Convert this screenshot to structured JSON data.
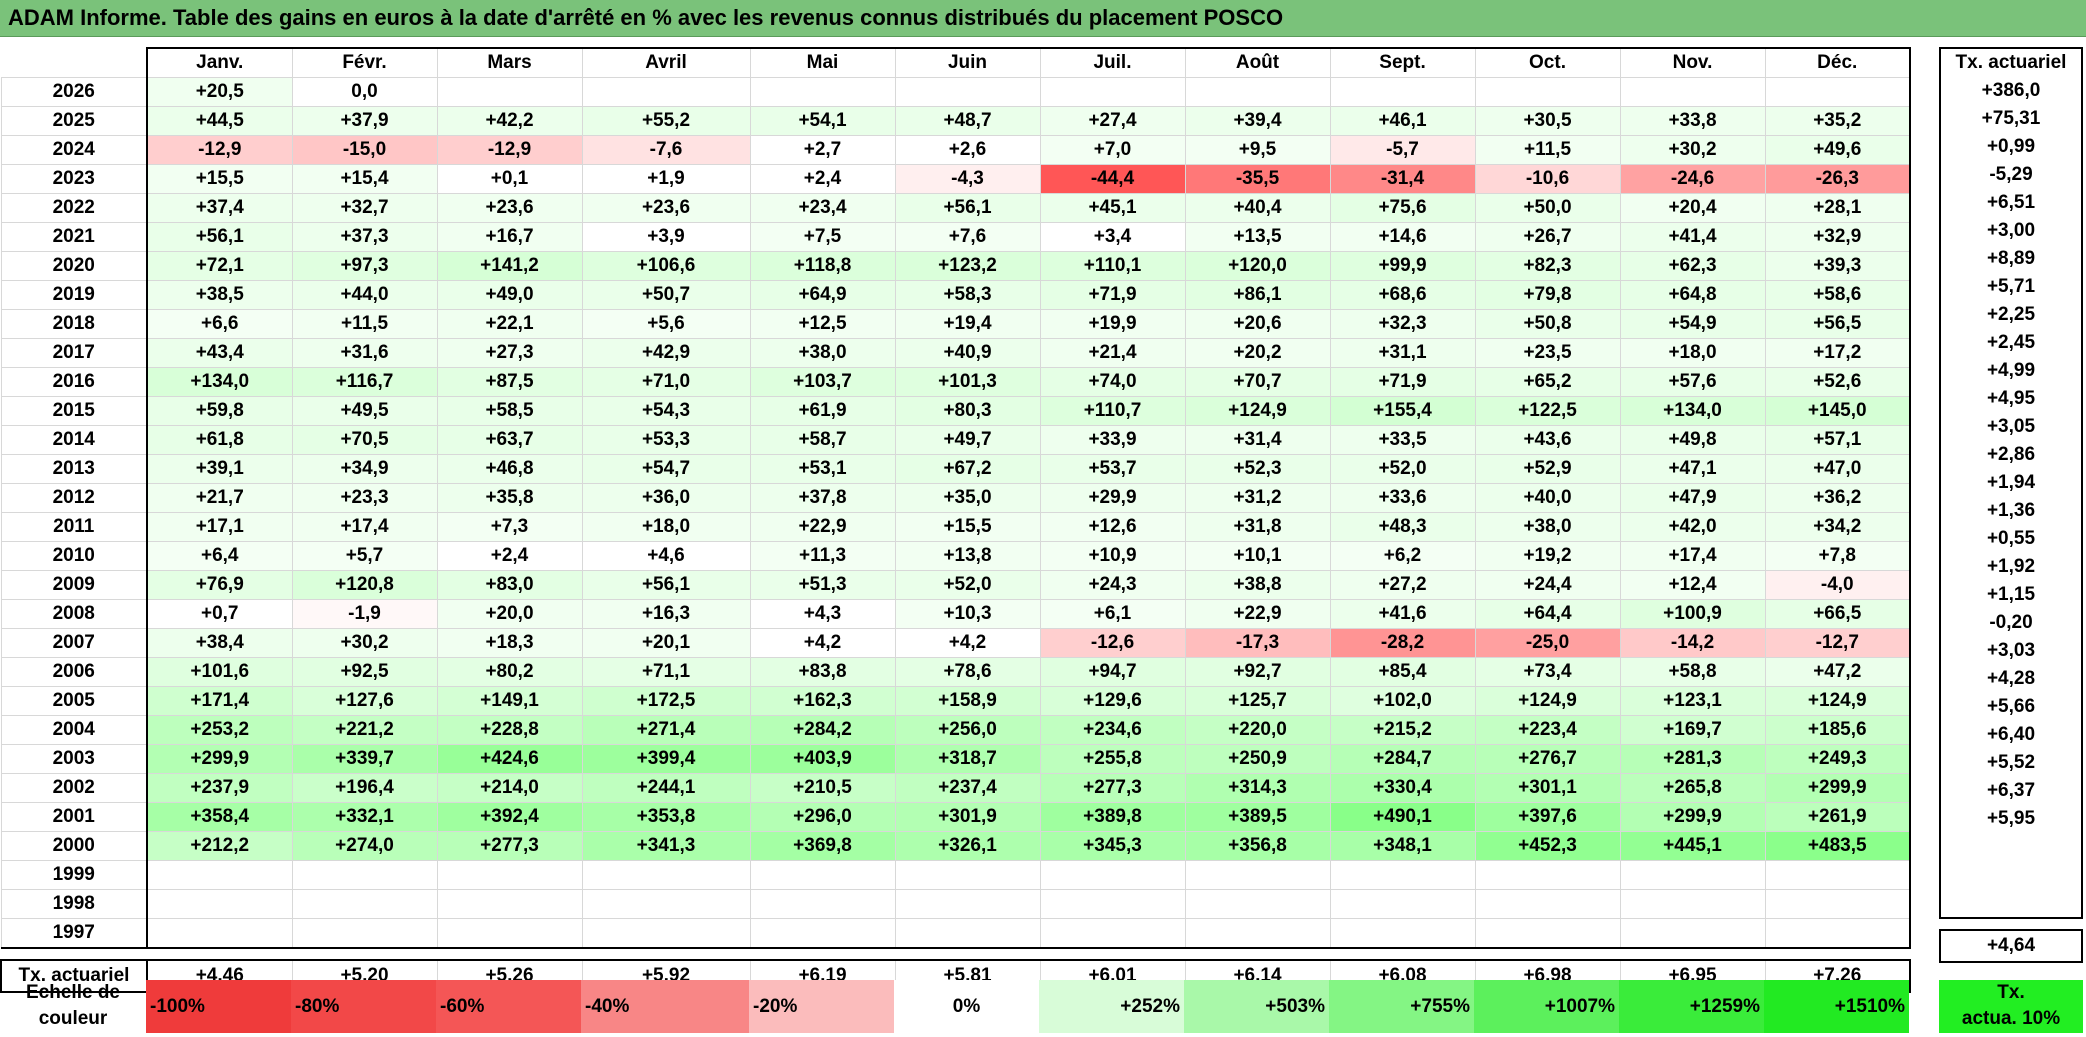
{
  "title": "ADAM Informe. Table des gains en euros à la date d'arrêté en % avec les revenus connus distribués du placement POSCO",
  "months": [
    "Janv.",
    "Févr.",
    "Mars",
    "Avril",
    "Mai",
    "Juin",
    "Juil.",
    "Août",
    "Sept.",
    "Oct.",
    "Nov.",
    "Déc."
  ],
  "tx_header": "Tx. actuariel",
  "rows": [
    {
      "year": "2026",
      "values": [
        "+20,5",
        "0,0",
        "",
        "",
        "",
        "",
        "",
        "",
        "",
        "",
        "",
        ""
      ],
      "tx": "+386,0"
    },
    {
      "year": "2025",
      "values": [
        "+44,5",
        "+37,9",
        "+42,2",
        "+55,2",
        "+54,1",
        "+48,7",
        "+27,4",
        "+39,4",
        "+46,1",
        "+30,5",
        "+33,8",
        "+35,2"
      ],
      "tx": "+75,31"
    },
    {
      "year": "2024",
      "values": [
        "-12,9",
        "-15,0",
        "-12,9",
        "-7,6",
        "+2,7",
        "+2,6",
        "+7,0",
        "+9,5",
        "-5,7",
        "+11,5",
        "+30,2",
        "+49,6"
      ],
      "tx": "+0,99"
    },
    {
      "year": "2023",
      "values": [
        "+15,5",
        "+15,4",
        "+0,1",
        "+1,9",
        "+2,4",
        "-4,3",
        "-44,4",
        "-35,5",
        "-31,4",
        "-10,6",
        "-24,6",
        "-26,3"
      ],
      "tx": "-5,29"
    },
    {
      "year": "2022",
      "values": [
        "+37,4",
        "+32,7",
        "+23,6",
        "+23,6",
        "+23,4",
        "+56,1",
        "+45,1",
        "+40,4",
        "+75,6",
        "+50,0",
        "+20,4",
        "+28,1"
      ],
      "tx": "+6,51"
    },
    {
      "year": "2021",
      "values": [
        "+56,1",
        "+37,3",
        "+16,7",
        "+3,9",
        "+7,5",
        "+7,6",
        "+3,4",
        "+13,5",
        "+14,6",
        "+26,7",
        "+41,4",
        "+32,9"
      ],
      "tx": "+3,00"
    },
    {
      "year": "2020",
      "values": [
        "+72,1",
        "+97,3",
        "+141,2",
        "+106,6",
        "+118,8",
        "+123,2",
        "+110,1",
        "+120,0",
        "+99,9",
        "+82,3",
        "+62,3",
        "+39,3"
      ],
      "tx": "+8,89"
    },
    {
      "year": "2019",
      "values": [
        "+38,5",
        "+44,0",
        "+49,0",
        "+50,7",
        "+64,9",
        "+58,3",
        "+71,9",
        "+86,1",
        "+68,6",
        "+79,8",
        "+64,8",
        "+58,6"
      ],
      "tx": "+5,71"
    },
    {
      "year": "2018",
      "values": [
        "+6,6",
        "+11,5",
        "+22,1",
        "+5,6",
        "+12,5",
        "+19,4",
        "+19,9",
        "+20,6",
        "+32,3",
        "+50,8",
        "+54,9",
        "+56,5"
      ],
      "tx": "+2,25"
    },
    {
      "year": "2017",
      "values": [
        "+43,4",
        "+31,6",
        "+27,3",
        "+42,9",
        "+38,0",
        "+40,9",
        "+21,4",
        "+20,2",
        "+31,1",
        "+23,5",
        "+18,0",
        "+17,2"
      ],
      "tx": "+2,45"
    },
    {
      "year": "2016",
      "values": [
        "+134,0",
        "+116,7",
        "+87,5",
        "+71,0",
        "+103,7",
        "+101,3",
        "+74,0",
        "+70,7",
        "+71,9",
        "+65,2",
        "+57,6",
        "+52,6"
      ],
      "tx": "+4,99"
    },
    {
      "year": "2015",
      "values": [
        "+59,8",
        "+49,5",
        "+58,5",
        "+54,3",
        "+61,9",
        "+80,3",
        "+110,7",
        "+124,9",
        "+155,4",
        "+122,5",
        "+134,0",
        "+145,0"
      ],
      "tx": "+4,95"
    },
    {
      "year": "2014",
      "values": [
        "+61,8",
        "+70,5",
        "+63,7",
        "+53,3",
        "+58,7",
        "+49,7",
        "+33,9",
        "+31,4",
        "+33,5",
        "+43,6",
        "+49,8",
        "+57,1"
      ],
      "tx": "+3,05"
    },
    {
      "year": "2013",
      "values": [
        "+39,1",
        "+34,9",
        "+46,8",
        "+54,7",
        "+53,1",
        "+67,2",
        "+53,7",
        "+52,3",
        "+52,0",
        "+52,9",
        "+47,1",
        "+47,0"
      ],
      "tx": "+2,86"
    },
    {
      "year": "2012",
      "values": [
        "+21,7",
        "+23,3",
        "+35,8",
        "+36,0",
        "+37,8",
        "+35,0",
        "+29,9",
        "+31,2",
        "+33,6",
        "+40,0",
        "+47,9",
        "+36,2"
      ],
      "tx": "+1,94"
    },
    {
      "year": "2011",
      "values": [
        "+17,1",
        "+17,4",
        "+7,3",
        "+18,0",
        "+22,9",
        "+15,5",
        "+12,6",
        "+31,8",
        "+48,3",
        "+38,0",
        "+42,0",
        "+34,2"
      ],
      "tx": "+1,36"
    },
    {
      "year": "2010",
      "values": [
        "+6,4",
        "+5,7",
        "+2,4",
        "+4,6",
        "+11,3",
        "+13,8",
        "+10,9",
        "+10,1",
        "+6,2",
        "+19,2",
        "+17,4",
        "+7,8"
      ],
      "tx": "+0,55"
    },
    {
      "year": "2009",
      "values": [
        "+76,9",
        "+120,8",
        "+83,0",
        "+56,1",
        "+51,3",
        "+52,0",
        "+24,3",
        "+38,8",
        "+27,2",
        "+24,4",
        "+12,4",
        "-4,0"
      ],
      "tx": "+1,92"
    },
    {
      "year": "2008",
      "values": [
        "+0,7",
        "-1,9",
        "+20,0",
        "+16,3",
        "+4,3",
        "+10,3",
        "+6,1",
        "+22,9",
        "+41,6",
        "+64,4",
        "+100,9",
        "+66,5"
      ],
      "tx": "+1,15"
    },
    {
      "year": "2007",
      "values": [
        "+38,4",
        "+30,2",
        "+18,3",
        "+20,1",
        "+4,2",
        "+4,2",
        "-12,6",
        "-17,3",
        "-28,2",
        "-25,0",
        "-14,2",
        "-12,7"
      ],
      "tx": "-0,20"
    },
    {
      "year": "2006",
      "values": [
        "+101,6",
        "+92,5",
        "+80,2",
        "+71,1",
        "+83,8",
        "+78,6",
        "+94,7",
        "+92,7",
        "+85,4",
        "+73,4",
        "+58,8",
        "+47,2"
      ],
      "tx": "+3,03"
    },
    {
      "year": "2005",
      "values": [
        "+171,4",
        "+127,6",
        "+149,1",
        "+172,5",
        "+162,3",
        "+158,9",
        "+129,6",
        "+125,7",
        "+102,0",
        "+124,9",
        "+123,1",
        "+124,9"
      ],
      "tx": "+4,28"
    },
    {
      "year": "2004",
      "values": [
        "+253,2",
        "+221,2",
        "+228,8",
        "+271,4",
        "+284,2",
        "+256,0",
        "+234,6",
        "+220,0",
        "+215,2",
        "+223,4",
        "+169,7",
        "+185,6"
      ],
      "tx": "+5,66"
    },
    {
      "year": "2003",
      "values": [
        "+299,9",
        "+339,7",
        "+424,6",
        "+399,4",
        "+403,9",
        "+318,7",
        "+255,8",
        "+250,9",
        "+284,7",
        "+276,7",
        "+281,3",
        "+249,3"
      ],
      "tx": "+6,40"
    },
    {
      "year": "2002",
      "values": [
        "+237,9",
        "+196,4",
        "+214,0",
        "+244,1",
        "+210,5",
        "+237,4",
        "+277,3",
        "+314,3",
        "+330,4",
        "+301,1",
        "+265,8",
        "+299,9"
      ],
      "tx": "+5,52"
    },
    {
      "year": "2001",
      "values": [
        "+358,4",
        "+332,1",
        "+392,4",
        "+353,8",
        "+296,0",
        "+301,9",
        "+389,8",
        "+389,5",
        "+490,1",
        "+397,6",
        "+299,9",
        "+261,9"
      ],
      "tx": "+6,37"
    },
    {
      "year": "2000",
      "values": [
        "+212,2",
        "+274,0",
        "+277,3",
        "+341,3",
        "+369,8",
        "+326,1",
        "+345,3",
        "+356,8",
        "+348,1",
        "+452,3",
        "+445,1",
        "+483,5"
      ],
      "tx": "+5,95"
    },
    {
      "year": "1999",
      "values": [
        "",
        "",
        "",
        "",
        "",
        "",
        "",
        "",
        "",
        "",
        "",
        ""
      ],
      "tx": ""
    },
    {
      "year": "1998",
      "values": [
        "",
        "",
        "",
        "",
        "",
        "",
        "",
        "",
        "",
        "",
        "",
        ""
      ],
      "tx": ""
    },
    {
      "year": "1997",
      "values": [
        "",
        "",
        "",
        "",
        "",
        "",
        "",
        "",
        "",
        "",
        "",
        ""
      ],
      "tx": ""
    }
  ],
  "footer": {
    "label": "Tx. actuariel",
    "values": [
      "+4,46",
      "+5,20",
      "+5,26",
      "+5,92",
      "+6,19",
      "+5,81",
      "+6,01",
      "+6,14",
      "+6,08",
      "+6,98",
      "+6,95",
      "+7,26"
    ],
    "total": "+4,64"
  },
  "scale": {
    "label_line1": "Echelle de",
    "label_line2": "couleur",
    "swatches": [
      {
        "label": "-100%",
        "color": "#ef3b3b"
      },
      {
        "label": "-80%",
        "color": "#f24848"
      },
      {
        "label": "-60%",
        "color": "#f45656"
      },
      {
        "label": "-40%",
        "color": "#f88686"
      },
      {
        "label": "-20%",
        "color": "#fbbcbc"
      },
      {
        "label": "0%",
        "color": "#ffffff"
      },
      {
        "label": "+252%",
        "color": "#d8fcd8"
      },
      {
        "label": "+503%",
        "color": "#a9f8a9"
      },
      {
        "label": "+755%",
        "color": "#84f584"
      },
      {
        "label": "+1007%",
        "color": "#5cf05c"
      },
      {
        "label": "+1259%",
        "color": "#3aec3a"
      },
      {
        "label": "+1510%",
        "color": "#22ea22"
      }
    ],
    "tx_line1": "Tx.",
    "tx_line2": "actua. 10%"
  }
}
